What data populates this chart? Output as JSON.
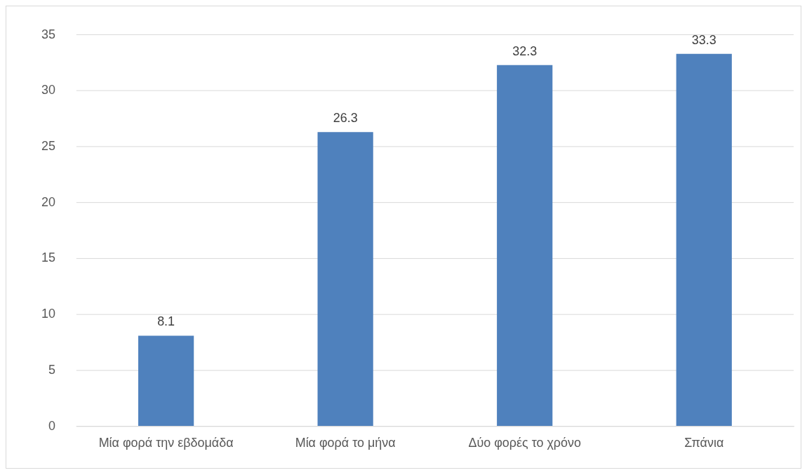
{
  "chart_data": {
    "type": "bar",
    "categories": [
      "Μία φορά την εβδομάδα",
      "Μία φορά το μήνα",
      "Δύο φορές το χρόνο",
      "Σπάνια"
    ],
    "values": [
      8.1,
      26.3,
      32.3,
      33.3
    ],
    "color": "#4f81bd",
    "ylim": [
      0,
      35
    ],
    "yticks": [
      0,
      5,
      10,
      15,
      20,
      25,
      30,
      35
    ],
    "grid": "y",
    "data_labels": true,
    "legend": false
  }
}
